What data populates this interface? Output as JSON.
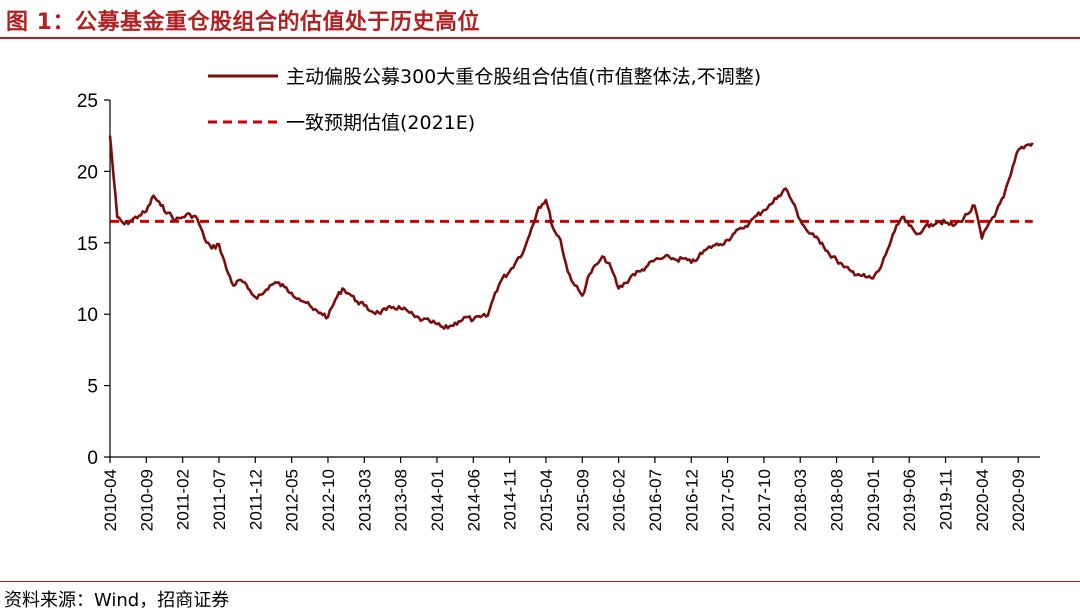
{
  "title": "图 1：公募基金重仓股组合的估值处于历史高位",
  "source": "资料来源：Wind，招商证券",
  "colors": {
    "accent": "#b22222",
    "series_actual": "#7b0d0d",
    "series_expected": "#cc0000"
  },
  "chart_data": {
    "type": "line",
    "title": "",
    "xlabel": "",
    "ylabel": "",
    "ylim": [
      0,
      25
    ],
    "yticks": [
      0,
      5,
      10,
      15,
      20,
      25
    ],
    "xlim": [
      "2010-04",
      "2020-12"
    ],
    "xticks": [
      "2010-04",
      "2010-09",
      "2011-02",
      "2011-07",
      "2011-12",
      "2012-05",
      "2012-10",
      "2013-03",
      "2013-08",
      "2014-01",
      "2014-06",
      "2014-11",
      "2015-04",
      "2015-09",
      "2016-02",
      "2016-07",
      "2016-12",
      "2017-05",
      "2017-10",
      "2018-03",
      "2018-08",
      "2019-01",
      "2019-06",
      "2019-11",
      "2020-04",
      "2020-09"
    ],
    "legend_position": "top-center",
    "grid": false,
    "series": [
      {
        "name": "主动偏股公募300大重仓股组合估值(市值整体法,不调整)",
        "style": "solid",
        "x": [
          "2010-04",
          "2010-05",
          "2010-06",
          "2010-07",
          "2010-08",
          "2010-09",
          "2010-10",
          "2010-11",
          "2010-12",
          "2011-01",
          "2011-02",
          "2011-03",
          "2011-04",
          "2011-05",
          "2011-06",
          "2011-07",
          "2011-08",
          "2011-09",
          "2011-10",
          "2011-11",
          "2011-12",
          "2012-01",
          "2012-02",
          "2012-03",
          "2012-04",
          "2012-05",
          "2012-06",
          "2012-07",
          "2012-08",
          "2012-09",
          "2012-10",
          "2012-11",
          "2012-12",
          "2013-01",
          "2013-02",
          "2013-03",
          "2013-04",
          "2013-05",
          "2013-06",
          "2013-07",
          "2013-08",
          "2013-09",
          "2013-10",
          "2013-11",
          "2013-12",
          "2014-01",
          "2014-02",
          "2014-03",
          "2014-04",
          "2014-05",
          "2014-06",
          "2014-07",
          "2014-08",
          "2014-09",
          "2014-10",
          "2014-11",
          "2014-12",
          "2015-01",
          "2015-02",
          "2015-03",
          "2015-04",
          "2015-05",
          "2015-06",
          "2015-07",
          "2015-08",
          "2015-09",
          "2015-10",
          "2015-11",
          "2015-12",
          "2016-01",
          "2016-02",
          "2016-03",
          "2016-04",
          "2016-05",
          "2016-06",
          "2016-07",
          "2016-08",
          "2016-09",
          "2016-10",
          "2016-11",
          "2016-12",
          "2017-01",
          "2017-02",
          "2017-03",
          "2017-04",
          "2017-05",
          "2017-06",
          "2017-07",
          "2017-08",
          "2017-09",
          "2017-10",
          "2017-11",
          "2017-12",
          "2018-01",
          "2018-02",
          "2018-03",
          "2018-04",
          "2018-05",
          "2018-06",
          "2018-07",
          "2018-08",
          "2018-09",
          "2018-10",
          "2018-11",
          "2018-12",
          "2019-01",
          "2019-02",
          "2019-03",
          "2019-04",
          "2019-05",
          "2019-06",
          "2019-07",
          "2019-08",
          "2019-09",
          "2019-10",
          "2019-11",
          "2019-12",
          "2020-01",
          "2020-02",
          "2020-03",
          "2020-04",
          "2020-05",
          "2020-06",
          "2020-07",
          "2020-08",
          "2020-09",
          "2020-10",
          "2020-11"
        ],
        "values": [
          22.5,
          16.8,
          16.3,
          16.6,
          16.9,
          17.2,
          18.3,
          17.6,
          17.1,
          16.6,
          16.8,
          17.0,
          16.7,
          15.3,
          14.6,
          14.9,
          13.2,
          12.0,
          12.4,
          11.8,
          11.2,
          11.4,
          12.0,
          12.2,
          11.9,
          11.5,
          11.1,
          10.8,
          10.3,
          10.1,
          9.8,
          11.0,
          11.8,
          11.4,
          10.9,
          10.6,
          10.2,
          10.1,
          10.3,
          10.5,
          10.4,
          10.2,
          9.8,
          9.6,
          9.5,
          9.3,
          9.0,
          9.2,
          9.5,
          9.8,
          9.6,
          9.8,
          9.9,
          11.5,
          12.5,
          13.0,
          13.8,
          14.5,
          16.0,
          17.5,
          18.0,
          16.0,
          15.2,
          13.0,
          12.0,
          11.3,
          12.8,
          13.5,
          14.0,
          13.2,
          11.8,
          12.2,
          12.8,
          13.0,
          13.4,
          13.8,
          13.9,
          14.0,
          13.8,
          13.9,
          13.6,
          14.0,
          14.5,
          14.8,
          14.9,
          15.2,
          15.7,
          16.0,
          16.4,
          16.9,
          17.3,
          17.7,
          18.3,
          18.8,
          17.8,
          16.6,
          15.8,
          15.4,
          15.0,
          14.2,
          13.8,
          13.3,
          13.0,
          12.8,
          12.6,
          12.5,
          13.2,
          14.5,
          15.8,
          16.8,
          16.2,
          15.6,
          16.0,
          16.3,
          16.5,
          16.4,
          16.2,
          16.5,
          17.0,
          17.6,
          15.3,
          16.4,
          17.2,
          18.2,
          19.8,
          21.5,
          21.8,
          22.0
        ]
      },
      {
        "name": "一致预期估值(2021E)",
        "style": "dashed",
        "x": [
          "2010-04",
          "2020-11"
        ],
        "values": [
          16.5,
          16.5
        ]
      }
    ]
  }
}
